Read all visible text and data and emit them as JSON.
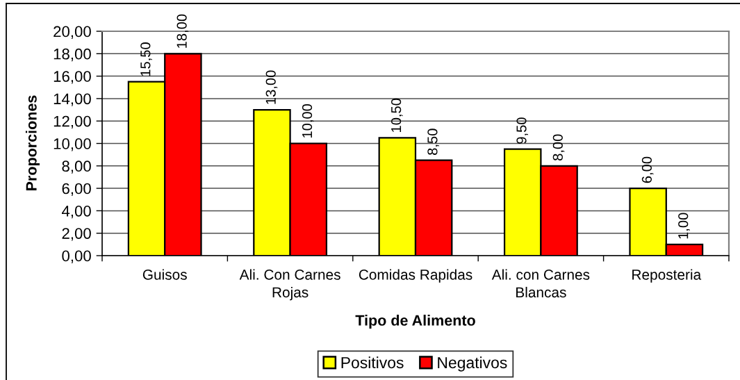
{
  "chart_data": {
    "type": "bar",
    "xlabel": "Tipo de Alimento",
    "ylabel": "Proporciones",
    "categories": [
      "Guisos",
      "Ali. Con Carnes\nRojas",
      "Comidas Rapidas",
      "Ali. con Carnes\nBlancas",
      "Reposteria"
    ],
    "series": [
      {
        "name": "Positivos",
        "color": "#ffff00",
        "values": [
          15.5,
          13,
          10.5,
          9.5,
          6
        ],
        "value_labels": [
          "15,50",
          "13,00",
          "10,50",
          "9,50",
          "6,00"
        ]
      },
      {
        "name": "Negativos",
        "color": "#ff0000",
        "values": [
          18,
          10,
          8.5,
          8,
          1
        ],
        "value_labels": [
          "18,00",
          "10,00",
          "8,50",
          "8,00",
          "1,00"
        ]
      }
    ],
    "ylim": [
      0,
      20
    ],
    "yticks": [
      {
        "value": 0,
        "label": "0,00"
      },
      {
        "value": 2,
        "label": "2,00"
      },
      {
        "value": 4,
        "label": "4,00"
      },
      {
        "value": 6,
        "label": "6,00"
      },
      {
        "value": 8,
        "label": "8,00"
      },
      {
        "value": 10,
        "label": "10,00"
      },
      {
        "value": 12,
        "label": "12,00"
      },
      {
        "value": 14,
        "label": "14,00"
      },
      {
        "value": 16,
        "label": "16,00"
      },
      {
        "value": 18,
        "label": "18,00"
      },
      {
        "value": 20,
        "label": "20,00"
      }
    ],
    "grid": "y",
    "legend": "bottom"
  }
}
